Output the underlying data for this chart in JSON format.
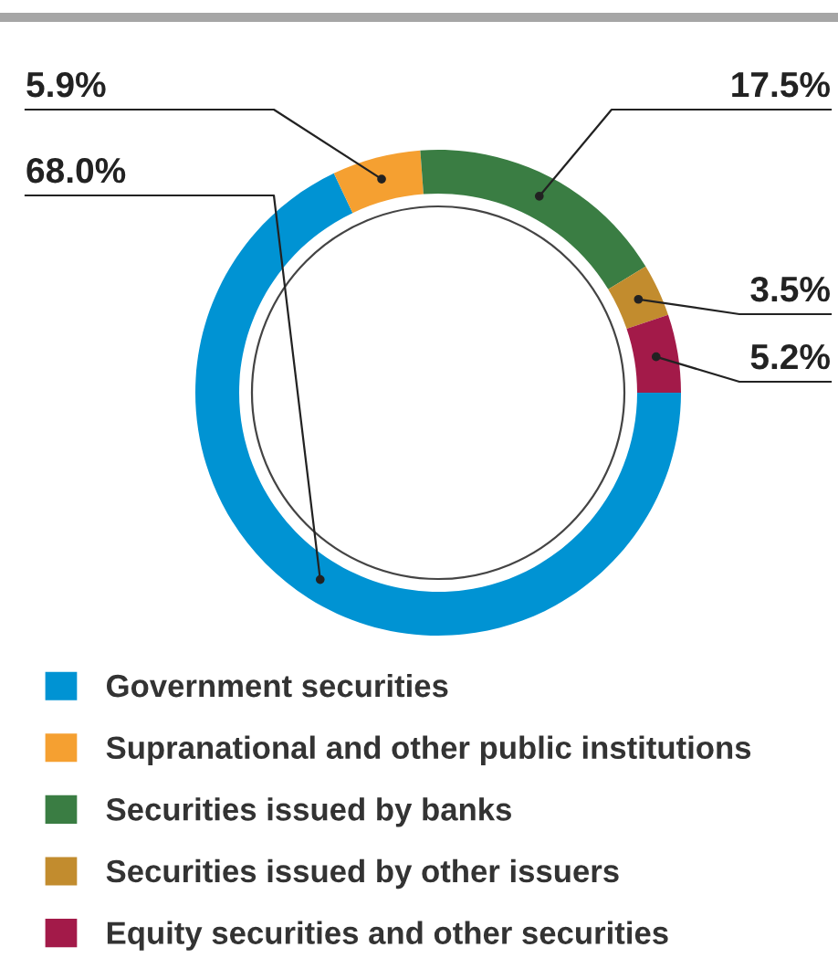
{
  "chart_data": {
    "type": "donut",
    "categories": [
      "Government securities",
      "Supranational and other public institutions",
      "Securities issued by banks",
      "Securities issued by other issuers",
      "Equity securities and other securities"
    ],
    "values": [
      68.0,
      5.9,
      17.5,
      3.5,
      5.2
    ],
    "value_labels": [
      "68.0%",
      "5.9%",
      "17.5%",
      "3.5%",
      "5.2%"
    ],
    "colors": [
      "#0093d3",
      "#f5a031",
      "#3a7d43",
      "#c28c2e",
      "#a31a49"
    ],
    "legend": "bottom"
  }
}
